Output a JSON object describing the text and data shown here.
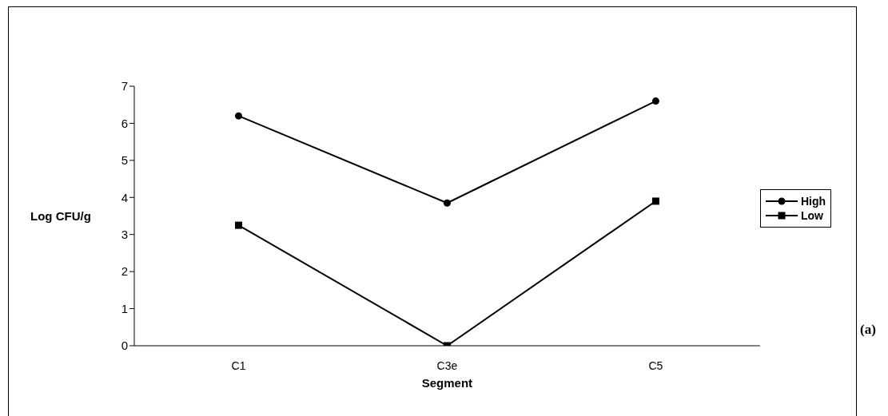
{
  "chart_data": {
    "type": "line",
    "xlabel": "Segment",
    "ylabel": "Log CFU/g",
    "categories": [
      "C1",
      "C3e",
      "C5"
    ],
    "series": [
      {
        "name": "High",
        "color": "#000000",
        "marker": "circle",
        "values": [
          6.2,
          3.85,
          6.6
        ]
      },
      {
        "name": "Low",
        "color": "#000000",
        "marker": "square",
        "values": [
          3.25,
          0,
          3.9
        ]
      }
    ],
    "ylim": [
      0,
      7
    ],
    "yticks": [
      0,
      1,
      2,
      3,
      4,
      5,
      6,
      7
    ],
    "grid": false,
    "legend": "right",
    "line_style": "solid",
    "annotations": [
      "(a)"
    ]
  }
}
